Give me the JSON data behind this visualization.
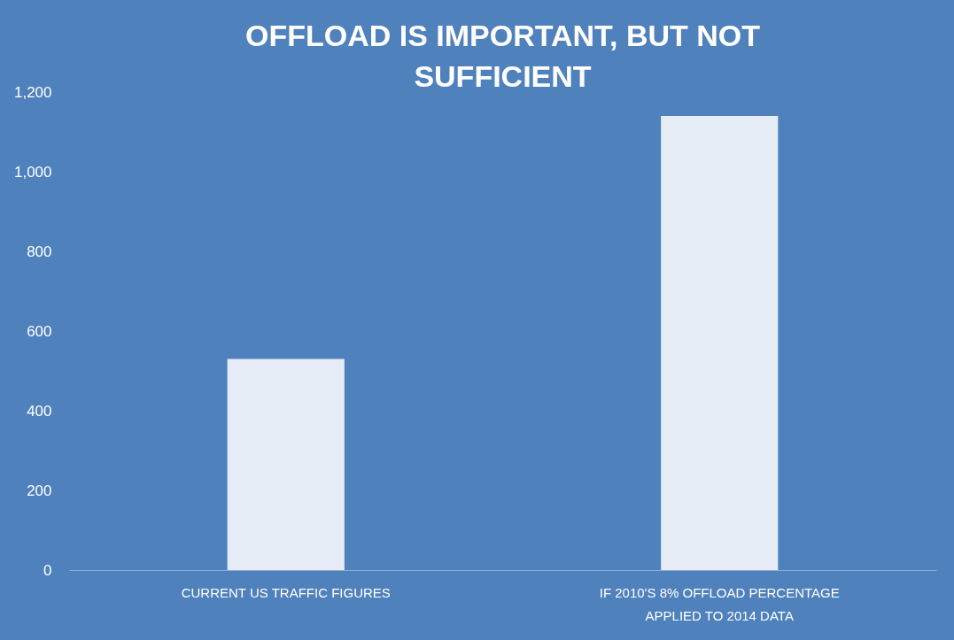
{
  "chart_data": {
    "type": "bar",
    "title": "OFFLOAD IS IMPORTANT, BUT NOT SUFFICIENT",
    "categories": [
      "CURRENT US TRAFFIC FIGURES",
      "IF 2010'S 8% OFFLOAD PERCENTAGE APPLIED TO 2014 DATA"
    ],
    "values": [
      530,
      1140
    ],
    "color": "#ffffff",
    "ylim": [
      0,
      1200
    ],
    "yticks": [
      {
        "value": 0,
        "label": "0"
      },
      {
        "value": 200,
        "label": "200"
      },
      {
        "value": 400,
        "label": "400"
      },
      {
        "value": 600,
        "label": "600"
      },
      {
        "value": 800,
        "label": "800"
      },
      {
        "value": 1000,
        "label": "1,000"
      },
      {
        "value": 1200,
        "label": "1,200"
      }
    ],
    "grid": false
  }
}
